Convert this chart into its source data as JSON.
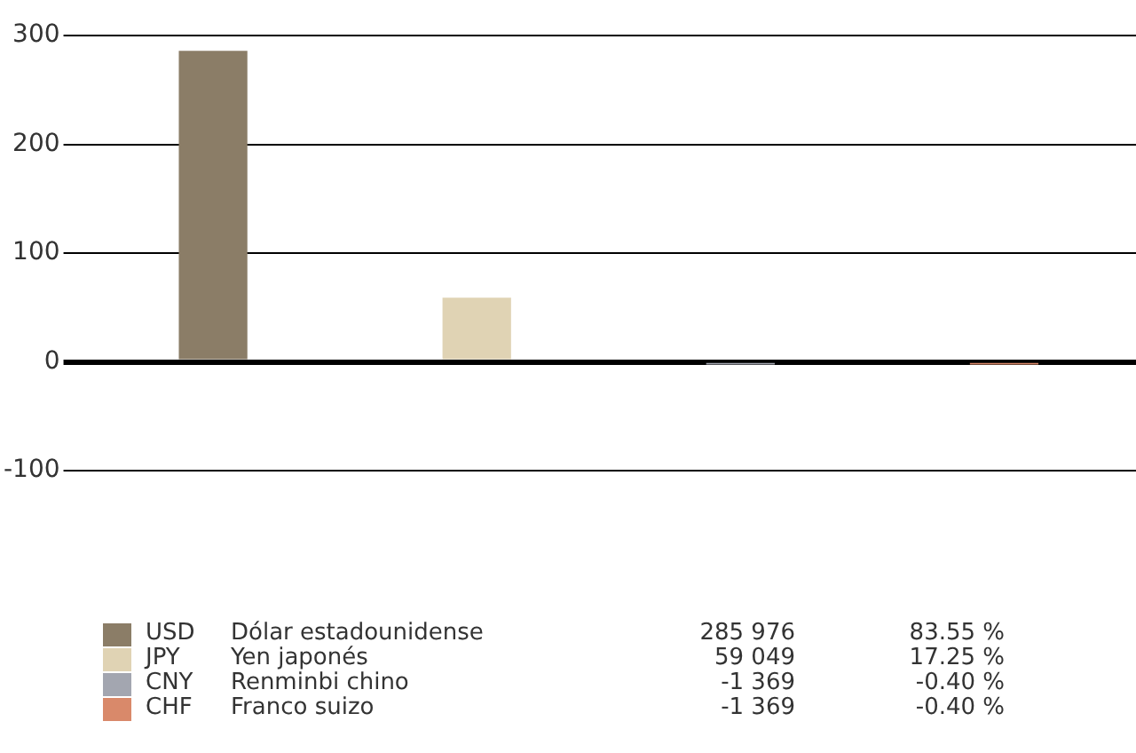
{
  "chart_data": {
    "type": "bar",
    "categories": [
      null,
      null,
      null,
      null
    ],
    "values": [
      286,
      59,
      -1,
      -1
    ],
    "colors": [
      "#8b7d67",
      "#e0d3b4",
      "#a3a6b0",
      "#d9896a"
    ],
    "annotations": [
      "USD",
      "Dólar estadounidense",
      "285 976",
      "83.55 %",
      "JPY",
      "Yen japonés",
      "59 049",
      "17.25 %",
      "CNY",
      "Renminbi chino",
      "-1 369",
      "-0.40 %",
      "CHF",
      "Franco suizo",
      "-1 369",
      "-0.40 %"
    ],
    "ylim": [
      -100,
      300
    ],
    "yticks": [
      -100,
      0,
      100,
      200,
      300
    ],
    "grid": "y"
  }
}
